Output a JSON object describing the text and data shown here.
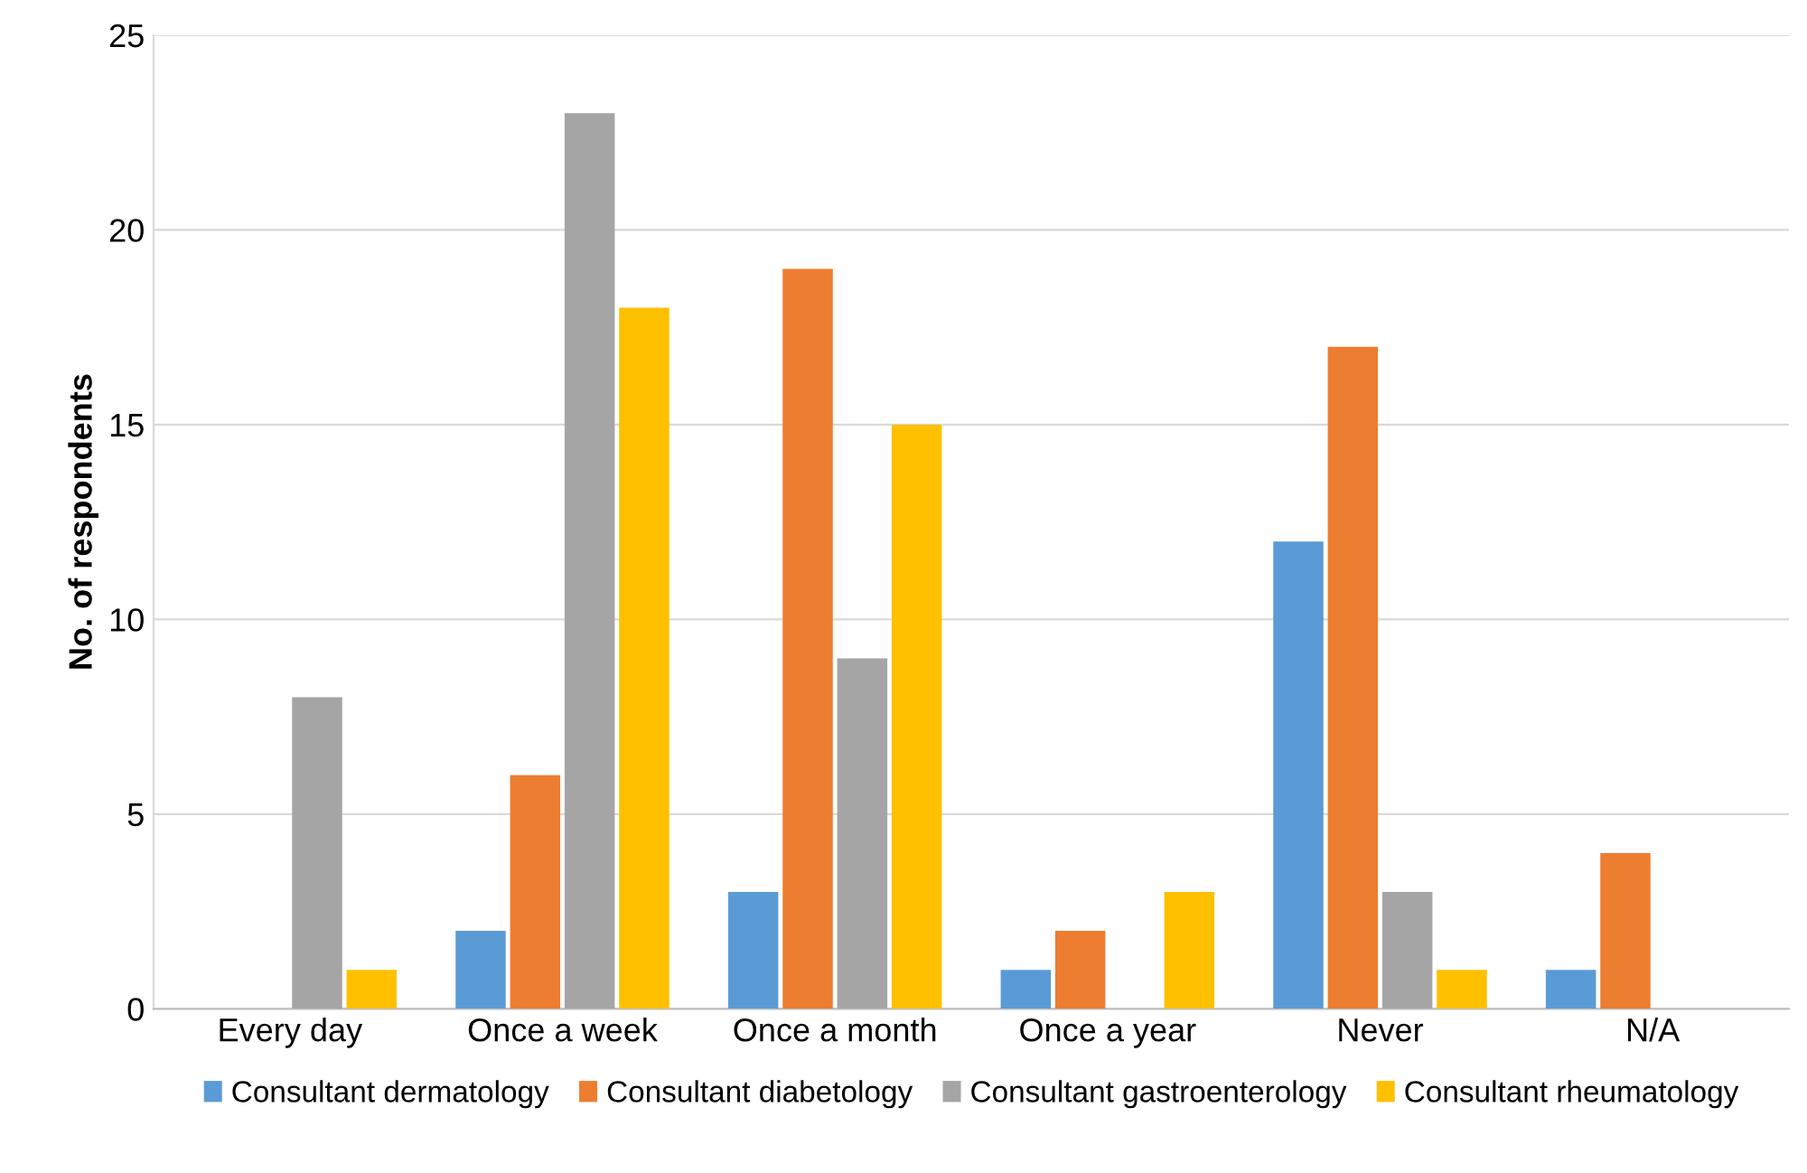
{
  "chart_data": {
    "type": "bar",
    "ylabel": "No. of respondents",
    "categories": [
      "Every day",
      "Once a week",
      "Once a month",
      "Once a year",
      "Never",
      "N/A"
    ],
    "series": [
      {
        "name": "Consultant dermatology",
        "color": "#5b9bd5",
        "values": [
          0,
          2,
          3,
          1,
          12,
          1
        ]
      },
      {
        "name": "Consultant diabetology",
        "color": "#ed7d31",
        "values": [
          0,
          6,
          19,
          2,
          17,
          4
        ]
      },
      {
        "name": "Consultant gastroenterology",
        "color": "#a5a5a5",
        "values": [
          8,
          23,
          9,
          0,
          3,
          0
        ]
      },
      {
        "name": "Consultant rheumatology",
        "color": "#ffc000",
        "values": [
          1,
          18,
          15,
          3,
          1,
          0
        ]
      }
    ],
    "ylim": [
      0,
      25
    ],
    "yticks": [
      0,
      5,
      10,
      15,
      20,
      25
    ],
    "grid": "y",
    "legend": "bottom"
  }
}
